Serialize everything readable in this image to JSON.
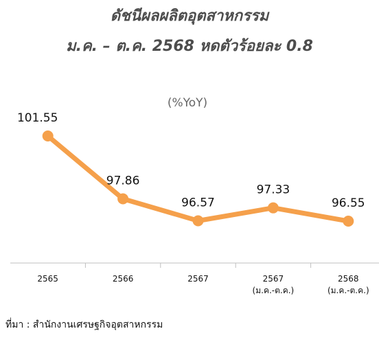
{
  "chart_data": {
    "type": "line",
    "title": "ดัชนีผลผลิตอุตสาหกรรม",
    "subtitle": "ม.ค. – ต.ค. 2568 หดตัวร้อยละ 0.8",
    "y_label": "(%YoY)",
    "categories": [
      "2565",
      "2566",
      "2567",
      "2567\n(ม.ค.-ต.ค.)",
      "2568\n(ม.ค.-ต.ค.)"
    ],
    "values": [
      101.55,
      97.86,
      96.57,
      97.33,
      96.55
    ],
    "color": "#F5A04B",
    "source": "ที่มา : สำนักงานเศรษฐกิจอุตสาหกรรม"
  }
}
